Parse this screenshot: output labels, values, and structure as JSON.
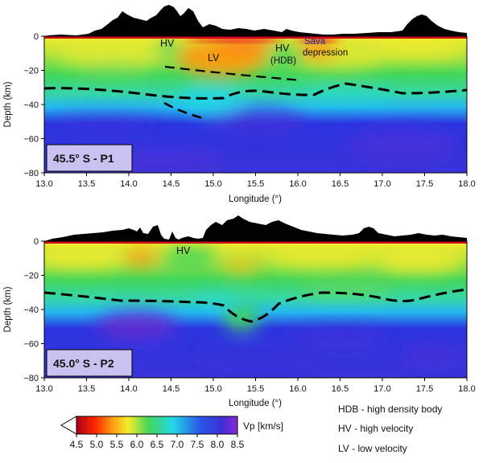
{
  "colors": {
    "red": "#c8001e",
    "orange": "#ffa21a",
    "yellow": "#f6ec2c",
    "green": "#41d65a",
    "cyan": "#22d8e9",
    "blue": "#2b34e0",
    "purple": "#7b2ad7",
    "moho": "#000000",
    "label_bg": "#c9c2f0"
  },
  "axes": {
    "xlabel": "Longitude (°)",
    "ylabel": "Depth (km)",
    "x_ticks": [
      "13.0",
      "13.5",
      "14.0",
      "14.5",
      "15.0",
      "15.5",
      "16.0",
      "16.5",
      "17.0",
      "17.5",
      "18.0"
    ],
    "y_ticks": [
      "0",
      "−20",
      "−40",
      "−60",
      "−80"
    ]
  },
  "panels": [
    {
      "title": "45.5° S - P1",
      "annotations": {
        "hv1": "HV",
        "lv": "LV",
        "hv2": "HV",
        "hdb": "(HDB)",
        "sava1": "Sava",
        "sava2": "depression"
      }
    },
    {
      "title": "45.0° S - P2",
      "annotations": {
        "hv1": "HV"
      }
    }
  ],
  "colorbar": {
    "label": "Vp [km/s]",
    "ticks": [
      "4.5",
      "5.0",
      "5.5",
      "6.0",
      "6.5",
      "7.0",
      "7.5",
      "8.0",
      "8.5"
    ]
  },
  "legend": [
    "HDB - high density body",
    "HV - high velocity",
    "LV - low velocity"
  ]
}
